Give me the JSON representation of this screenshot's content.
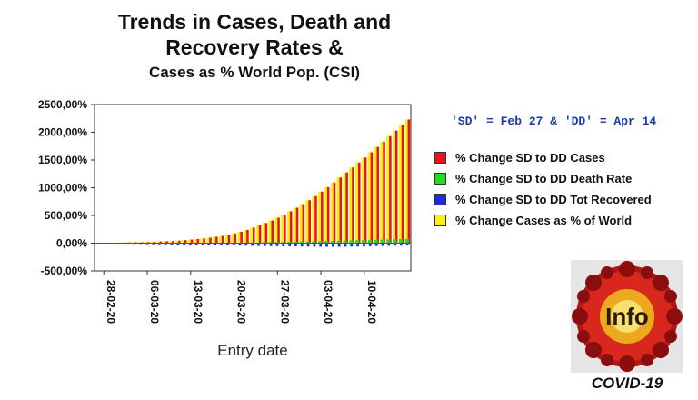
{
  "title": {
    "line1": "Trends in Cases, Death and",
    "line2": "Recovery Rates &",
    "line3": "Cases as % World Pop. (CSI)"
  },
  "legend_note": "'SD' = Feb 27 & 'DD' = Apr 14",
  "logo": {
    "text": "Info",
    "caption": "COVID-19"
  },
  "colors": {
    "cases": "#e8141c",
    "death": "#22dd22",
    "recovered": "#1b2be0",
    "world": "#ffee10"
  },
  "chart_data": {
    "type": "bar",
    "xlabel": "Entry date",
    "ylabel": "",
    "ylim": [
      -500,
      2500
    ],
    "yticks": [
      "2500,00%",
      "2000,00%",
      "1500,00%",
      "1000,00%",
      "500,00%",
      "0,00%",
      "-500,00%"
    ],
    "x_tick_labels": [
      "28-02-20",
      "06-03-20",
      "13-03-20",
      "20-03-20",
      "27-03-20",
      "03-04-20",
      "10-04-20"
    ],
    "x_tick_indices": [
      1,
      8,
      15,
      22,
      29,
      36,
      43
    ],
    "legend_position": "right",
    "grid": false,
    "series": [
      {
        "name": "% Change SD to DD Cases",
        "color_key": "cases",
        "values": [
          0,
          5,
          8,
          10,
          12,
          14,
          16,
          18,
          20,
          25,
          30,
          35,
          40,
          45,
          55,
          65,
          75,
          85,
          100,
          115,
          130,
          150,
          175,
          205,
          240,
          280,
          320,
          365,
          410,
          460,
          515,
          575,
          640,
          705,
          775,
          850,
          930,
          1010,
          1095,
          1185,
          1275,
          1365,
          1455,
          1545,
          1640,
          1735,
          1830,
          1930,
          2030,
          2130,
          2230
        ]
      },
      {
        "name": "% Change SD to DD Death Rate",
        "color_key": "death",
        "values": [
          0,
          0,
          0,
          0,
          0,
          0,
          0,
          0,
          0,
          0,
          0,
          0,
          0,
          0,
          0,
          0,
          0,
          2,
          3,
          4,
          5,
          6,
          7,
          8,
          10,
          12,
          14,
          16,
          18,
          20,
          22,
          24,
          26,
          28,
          30,
          32,
          35,
          38,
          41,
          44,
          47,
          50,
          53,
          56,
          59,
          62,
          65,
          68,
          71,
          74,
          77
        ]
      },
      {
        "name": "% Change SD to DD Tot Recovered",
        "color_key": "recovered",
        "values": [
          0,
          -3,
          -5,
          -6,
          -8,
          -10,
          -12,
          -14,
          -16,
          -18,
          -20,
          -22,
          -25,
          -28,
          -30,
          -32,
          -33,
          -34,
          -35,
          -36,
          -38,
          -40,
          -42,
          -44,
          -46,
          -48,
          -50,
          -52,
          -54,
          -55,
          -56,
          -57,
          -58,
          -60,
          -62,
          -64,
          -65,
          -66,
          -66,
          -65,
          -64,
          -62,
          -60,
          -58,
          -55,
          -52,
          -50,
          -48,
          -46,
          -44,
          -42
        ]
      },
      {
        "name": "% Change Cases as % of World",
        "color_key": "world",
        "values": [
          0,
          5,
          8,
          10,
          12,
          14,
          16,
          18,
          20,
          25,
          30,
          35,
          40,
          45,
          55,
          65,
          75,
          85,
          100,
          115,
          130,
          150,
          175,
          205,
          240,
          280,
          320,
          365,
          410,
          460,
          515,
          575,
          640,
          705,
          775,
          850,
          930,
          1010,
          1095,
          1185,
          1275,
          1365,
          1455,
          1545,
          1640,
          1735,
          1830,
          1930,
          2030,
          2130,
          2230
        ]
      }
    ]
  }
}
